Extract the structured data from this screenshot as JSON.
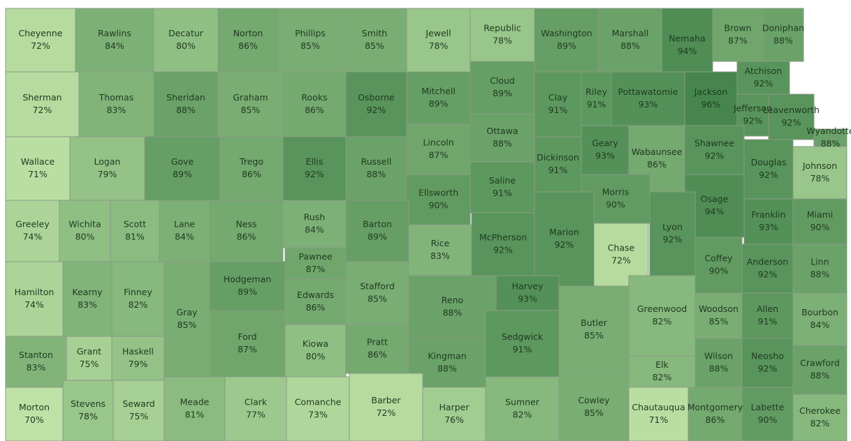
{
  "counties": [
    {
      "name": "Cheyenne",
      "value": 72,
      "label": "72%"
    },
    {
      "name": "Rawlins",
      "value": 84,
      "label": "84%"
    },
    {
      "name": "Decatur",
      "value": 80,
      "label": "80%"
    },
    {
      "name": "Norton",
      "value": 86,
      "label": "86%"
    },
    {
      "name": "Phillips",
      "value": 85,
      "label": "85%"
    },
    {
      "name": "Smith",
      "value": 85,
      "label": "85%"
    },
    {
      "name": "Jewell",
      "value": 78,
      "label": "78%"
    },
    {
      "name": "Republic",
      "value": 78,
      "label": "78%"
    },
    {
      "name": "Washington",
      "value": 89,
      "label": "89%"
    },
    {
      "name": "Marshall",
      "value": 88,
      "label": "88%"
    },
    {
      "name": "Nemaha",
      "value": 94,
      "label": "94%"
    },
    {
      "name": "Brown",
      "value": 87,
      "label": "87%"
    },
    {
      "name": "Doniphan",
      "value": 88,
      "label": "88%"
    },
    {
      "name": "Sherman",
      "value": 72,
      "label": "72%"
    },
    {
      "name": "Thomas",
      "value": 83,
      "label": "83%"
    },
    {
      "name": "Sheridan",
      "value": 88,
      "label": "88%"
    },
    {
      "name": "Graham",
      "value": 85,
      "label": "85%"
    },
    {
      "name": "Rooks",
      "value": 86,
      "label": "86%"
    },
    {
      "name": "Osborne",
      "value": 92,
      "label": "92%"
    },
    {
      "name": "Mitchell",
      "value": 89,
      "label": "89%"
    },
    {
      "name": "Cloud",
      "value": 89,
      "label": "89%"
    },
    {
      "name": "Clay",
      "value": 91,
      "label": "91%"
    },
    {
      "name": "Riley",
      "value": 91,
      "label": "91%"
    },
    {
      "name": "Pottawatomie",
      "value": 93,
      "label": "93%"
    },
    {
      "name": "Jackson",
      "value": 96,
      "label": "96%"
    },
    {
      "name": "Atchison",
      "value": 92,
      "label": "92%"
    },
    {
      "name": "Jefferson",
      "value": 92,
      "label": "92%"
    },
    {
      "name": "Leavenworth",
      "value": 92,
      "label": "92%"
    },
    {
      "name": "Wallace",
      "value": 71,
      "label": "71%"
    },
    {
      "name": "Logan",
      "value": 79,
      "label": "79%"
    },
    {
      "name": "Gove",
      "value": 89,
      "label": "89%"
    },
    {
      "name": "Trego",
      "value": 86,
      "label": "86%"
    },
    {
      "name": "Ellis",
      "value": 92,
      "label": "92%"
    },
    {
      "name": "Russell",
      "value": 88,
      "label": "88%"
    },
    {
      "name": "Lincoln",
      "value": 87,
      "label": "87%"
    },
    {
      "name": "Ottawa",
      "value": 88,
      "label": "88%"
    },
    {
      "name": "Dickinson",
      "value": 91,
      "label": "91%"
    },
    {
      "name": "Geary",
      "value": 93,
      "label": "93%"
    },
    {
      "name": "Wabaunsee",
      "value": 86,
      "label": "86%"
    },
    {
      "name": "Shawnee",
      "value": 92,
      "label": "92%"
    },
    {
      "name": "Douglas",
      "value": 92,
      "label": "92%"
    },
    {
      "name": "Wyandotte",
      "value": 88,
      "label": "88%"
    },
    {
      "name": "Johnson",
      "value": 78,
      "label": "78%"
    },
    {
      "name": "Ellsworth",
      "value": 90,
      "label": "90%"
    },
    {
      "name": "Saline",
      "value": 91,
      "label": "91%"
    },
    {
      "name": "Morris",
      "value": 90,
      "label": "90%"
    },
    {
      "name": "Osage",
      "value": 94,
      "label": "94%"
    },
    {
      "name": "Franklin",
      "value": 93,
      "label": "93%"
    },
    {
      "name": "Miami",
      "value": 90,
      "label": "90%"
    },
    {
      "name": "Lyon",
      "value": 92,
      "label": "92%"
    },
    {
      "name": "Greeley",
      "value": 74,
      "label": "74%"
    },
    {
      "name": "Wichita",
      "value": 80,
      "label": "80%"
    },
    {
      "name": "Scott",
      "value": 81,
      "label": "81%"
    },
    {
      "name": "Lane",
      "value": 84,
      "label": "84%"
    },
    {
      "name": "Ness",
      "value": 86,
      "label": "86%"
    },
    {
      "name": "Rush",
      "value": 84,
      "label": "84%"
    },
    {
      "name": "Barton",
      "value": 89,
      "label": "89%"
    },
    {
      "name": "Rice",
      "value": 83,
      "label": "83%"
    },
    {
      "name": "McPherson",
      "value": 92,
      "label": "92%"
    },
    {
      "name": "Marion",
      "value": 92,
      "label": "92%"
    },
    {
      "name": "Chase",
      "value": 72,
      "label": "72%"
    },
    {
      "name": "Coffey",
      "value": 90,
      "label": "90%"
    },
    {
      "name": "Anderson",
      "value": 92,
      "label": "92%"
    },
    {
      "name": "Linn",
      "value": 88,
      "label": "88%"
    },
    {
      "name": "Hamilton",
      "value": 74,
      "label": "74%"
    },
    {
      "name": "Kearny",
      "value": 83,
      "label": "83%"
    },
    {
      "name": "Finney",
      "value": 82,
      "label": "82%"
    },
    {
      "name": "Hodgeman",
      "value": 89,
      "label": "89%"
    },
    {
      "name": "Pawnee",
      "value": 87,
      "label": "87%"
    },
    {
      "name": "Stafford",
      "value": 85,
      "label": "85%"
    },
    {
      "name": "Edwards",
      "value": 86,
      "label": "86%"
    },
    {
      "name": "Reno",
      "value": 88,
      "label": "88%"
    },
    {
      "name": "Harvey",
      "value": 93,
      "label": "93%"
    },
    {
      "name": "Butler",
      "value": 85,
      "label": "85%"
    },
    {
      "name": "Greenwood",
      "value": 82,
      "label": "82%"
    },
    {
      "name": "Woodson",
      "value": 85,
      "label": "85%"
    },
    {
      "name": "Allen",
      "value": 91,
      "label": "91%"
    },
    {
      "name": "Bourbon",
      "value": 84,
      "label": "84%"
    },
    {
      "name": "Gray",
      "value": 85,
      "label": "85%"
    },
    {
      "name": "Ford",
      "value": 87,
      "label": "87%"
    },
    {
      "name": "Kiowa",
      "value": 80,
      "label": "80%"
    },
    {
      "name": "Pratt",
      "value": 86,
      "label": "86%"
    },
    {
      "name": "Kingman",
      "value": 88,
      "label": "88%"
    },
    {
      "name": "Sedgwick",
      "value": 91,
      "label": "91%"
    },
    {
      "name": "Elk",
      "value": 82,
      "label": "82%"
    },
    {
      "name": "Wilson",
      "value": 88,
      "label": "88%"
    },
    {
      "name": "Neosho",
      "value": 92,
      "label": "92%"
    },
    {
      "name": "Crawford",
      "value": 88,
      "label": "88%"
    },
    {
      "name": "Stanton",
      "value": 83,
      "label": "83%"
    },
    {
      "name": "Grant",
      "value": 75,
      "label": "75%"
    },
    {
      "name": "Haskell",
      "value": 79,
      "label": "79%"
    },
    {
      "name": "Morton",
      "value": 70,
      "label": "70%"
    },
    {
      "name": "Stevens",
      "value": 78,
      "label": "78%"
    },
    {
      "name": "Seward",
      "value": 75,
      "label": "75%"
    },
    {
      "name": "Meade",
      "value": 81,
      "label": "81%"
    },
    {
      "name": "Clark",
      "value": 77,
      "label": "77%"
    },
    {
      "name": "Comanche",
      "value": 73,
      "label": "73%"
    },
    {
      "name": "Barber",
      "value": 72,
      "label": "72%"
    },
    {
      "name": "Harper",
      "value": 76,
      "label": "76%"
    },
    {
      "name": "Sumner",
      "value": 82,
      "label": "82%"
    },
    {
      "name": "Cowley",
      "value": 85,
      "label": "85%"
    },
    {
      "name": "Chautauqua",
      "value": 71,
      "label": "71%"
    },
    {
      "name": "Montgomery",
      "value": 86,
      "label": "86%"
    },
    {
      "name": "Labette",
      "value": 90,
      "label": "90%"
    },
    {
      "name": "Cherokee",
      "value": 82,
      "label": "82%"
    }
  ]
}
